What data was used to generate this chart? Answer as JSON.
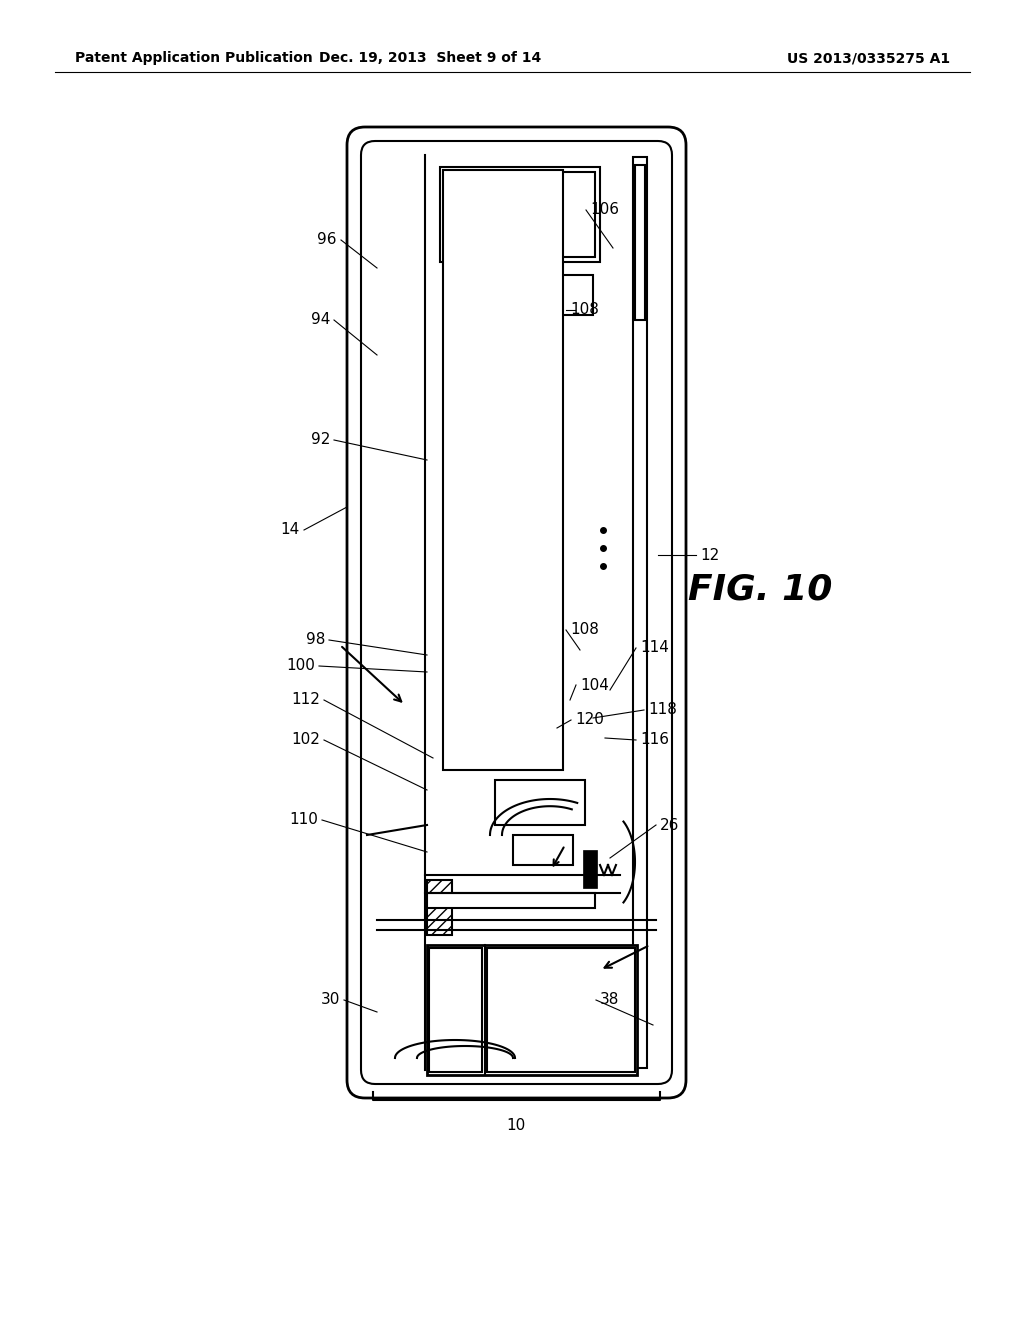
{
  "bg_color": "#ffffff",
  "lc": "#000000",
  "header_left": "Patent Application Publication",
  "header_mid": "Dec. 19, 2013  Sheet 9 of 14",
  "header_right": "US 2013/0335275 A1",
  "fig_label": "FIG. 10"
}
